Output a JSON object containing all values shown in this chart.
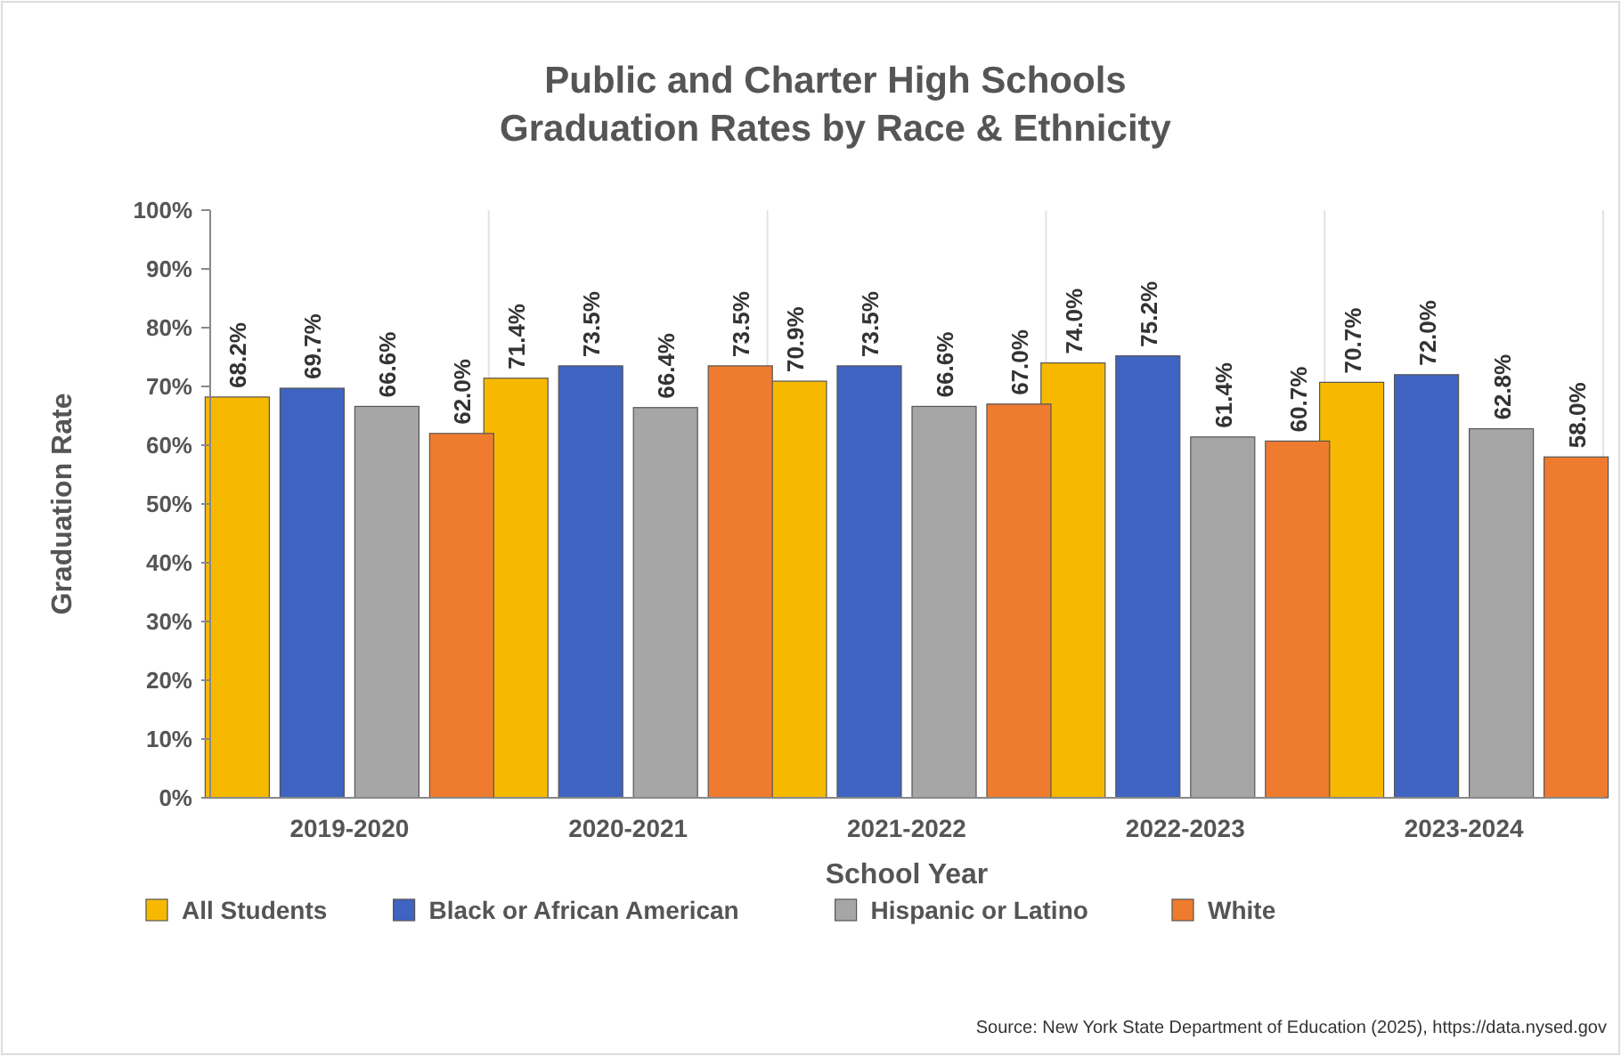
{
  "chart_data": {
    "type": "bar",
    "title": "Public and Charter High Schools\nGraduation Rates by Race & Ethnicity",
    "xlabel": "School Year",
    "ylabel": "Graduation Rate",
    "categories": [
      "2019-2020",
      "2020-2021",
      "2021-2022",
      "2022-2023",
      "2023-2024"
    ],
    "series": [
      {
        "name": "All Students",
        "color": "#f7b900",
        "values": [
          68.2,
          71.4,
          70.9,
          74.0,
          70.7
        ],
        "value_labels": [
          "68.2%",
          "71.4%",
          "70.9%",
          "74.0%",
          "70.7%"
        ]
      },
      {
        "name": "Black or African American",
        "color": "#3f63c0",
        "values": [
          69.7,
          73.5,
          73.5,
          75.2,
          72.0
        ],
        "value_labels": [
          "69.7%",
          "73.5%",
          "73.5%",
          "75.2%",
          "72.0%"
        ]
      },
      {
        "name": "Hispanic or Latino",
        "color": "#a6a6a6",
        "values": [
          66.6,
          66.4,
          66.6,
          61.4,
          62.8
        ],
        "value_labels": [
          "66.6%",
          "66.4%",
          "66.6%",
          "61.4%",
          "62.8%"
        ]
      },
      {
        "name": "White",
        "color": "#ef7b2f",
        "values": [
          62.0,
          73.5,
          67.0,
          60.7,
          58.0
        ],
        "value_labels": [
          "62.0%",
          "73.5%",
          "67.0%",
          "60.7%",
          "58.0%"
        ]
      }
    ],
    "ylim": [
      0,
      100
    ],
    "yticks": [
      {
        "value": 0,
        "label": "0%"
      },
      {
        "value": 10,
        "label": "10%"
      },
      {
        "value": 20,
        "label": "20%"
      },
      {
        "value": 30,
        "label": "30%"
      },
      {
        "value": 40,
        "label": "40%"
      },
      {
        "value": 50,
        "label": "50%"
      },
      {
        "value": 60,
        "label": "60%"
      },
      {
        "value": 70,
        "label": "70%"
      },
      {
        "value": 80,
        "label": "80%"
      },
      {
        "value": 90,
        "label": "90%"
      },
      {
        "value": 100,
        "label": "100%"
      }
    ],
    "grid": "x",
    "legend": "bottom",
    "annotations": [
      "Source: New York State Department of Education (2025), https://data.nysed.gov"
    ]
  }
}
